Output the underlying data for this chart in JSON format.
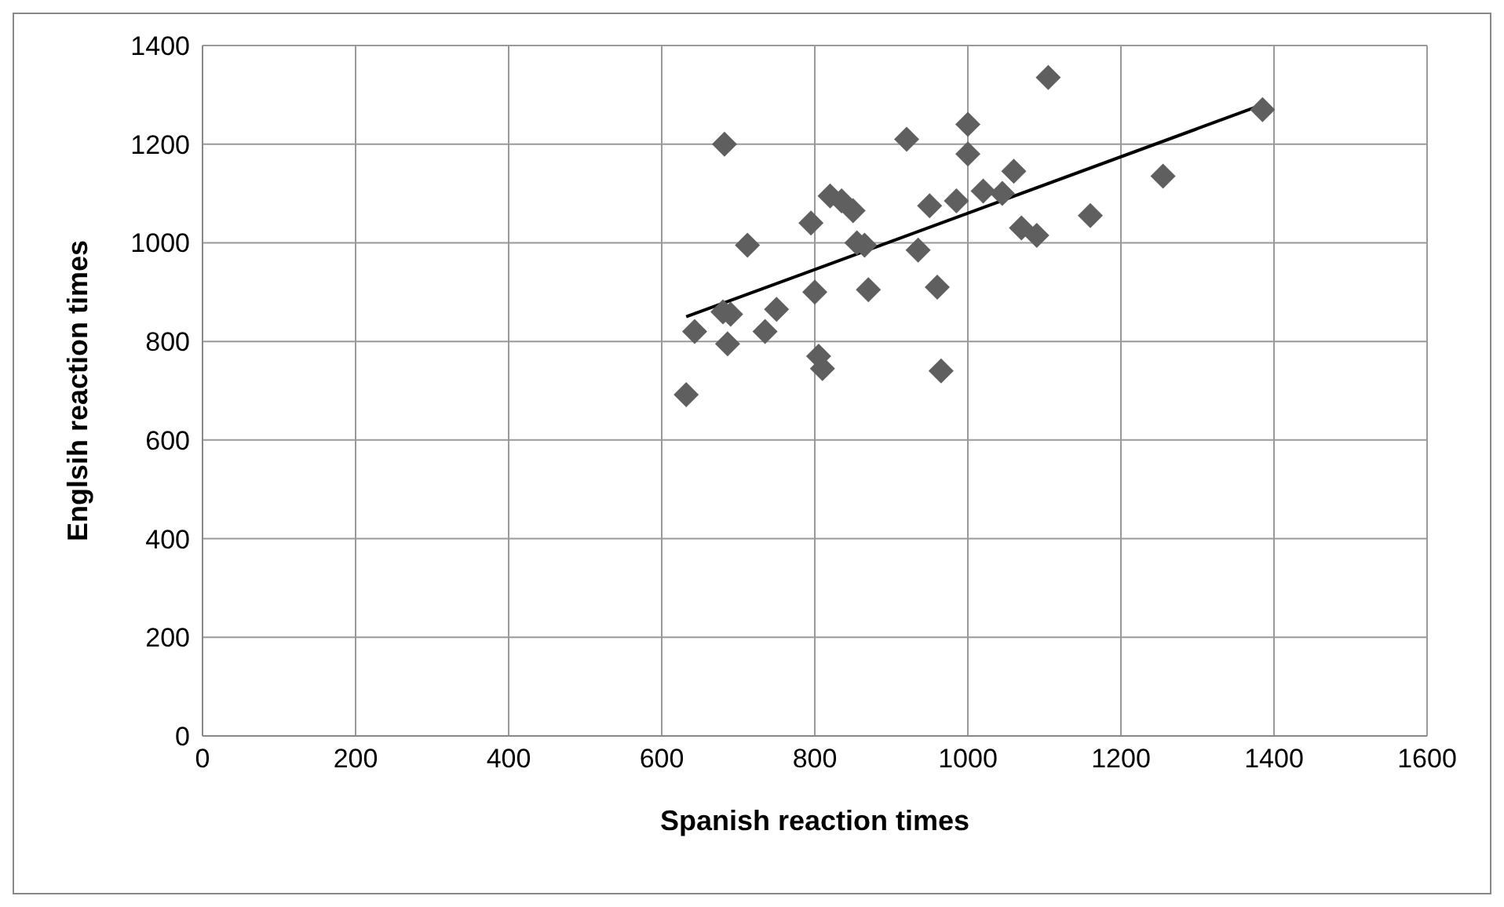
{
  "chart_data": {
    "type": "scatter",
    "xlabel": "Spanish reaction times",
    "ylabel": "Englsih reaction times",
    "xlim": [
      0,
      1600
    ],
    "ylim": [
      0,
      1400
    ],
    "xticks": [
      0,
      200,
      400,
      600,
      800,
      1000,
      1200,
      1400,
      1600
    ],
    "yticks": [
      0,
      200,
      400,
      600,
      800,
      1000,
      1200,
      1400
    ],
    "grid": true,
    "legend": false,
    "series": [
      {
        "marker": "diamond",
        "color": "#5f5f5f",
        "x": [
          632,
          643,
          682,
          680,
          686,
          690,
          712,
          735,
          750,
          795,
          800,
          805,
          810,
          820,
          835,
          850,
          855,
          865,
          870,
          920,
          935,
          950,
          960,
          965,
          985,
          1000,
          1000,
          1020,
          1045,
          1060,
          1070,
          1090,
          1105,
          1160,
          1255,
          1385
        ],
        "values": [
          692,
          820,
          1200,
          860,
          795,
          855,
          995,
          820,
          865,
          1040,
          900,
          770,
          745,
          1095,
          1085,
          1065,
          1000,
          995,
          905,
          1210,
          985,
          1075,
          910,
          740,
          1085,
          1240,
          1180,
          1105,
          1100,
          1145,
          1030,
          1015,
          1335,
          1055,
          1135,
          1270
        ]
      },
      {
        "type": "line",
        "marker": "none",
        "color": "#000000",
        "x": [
          632,
          1385
        ],
        "values": [
          850,
          1280
        ]
      }
    ]
  }
}
